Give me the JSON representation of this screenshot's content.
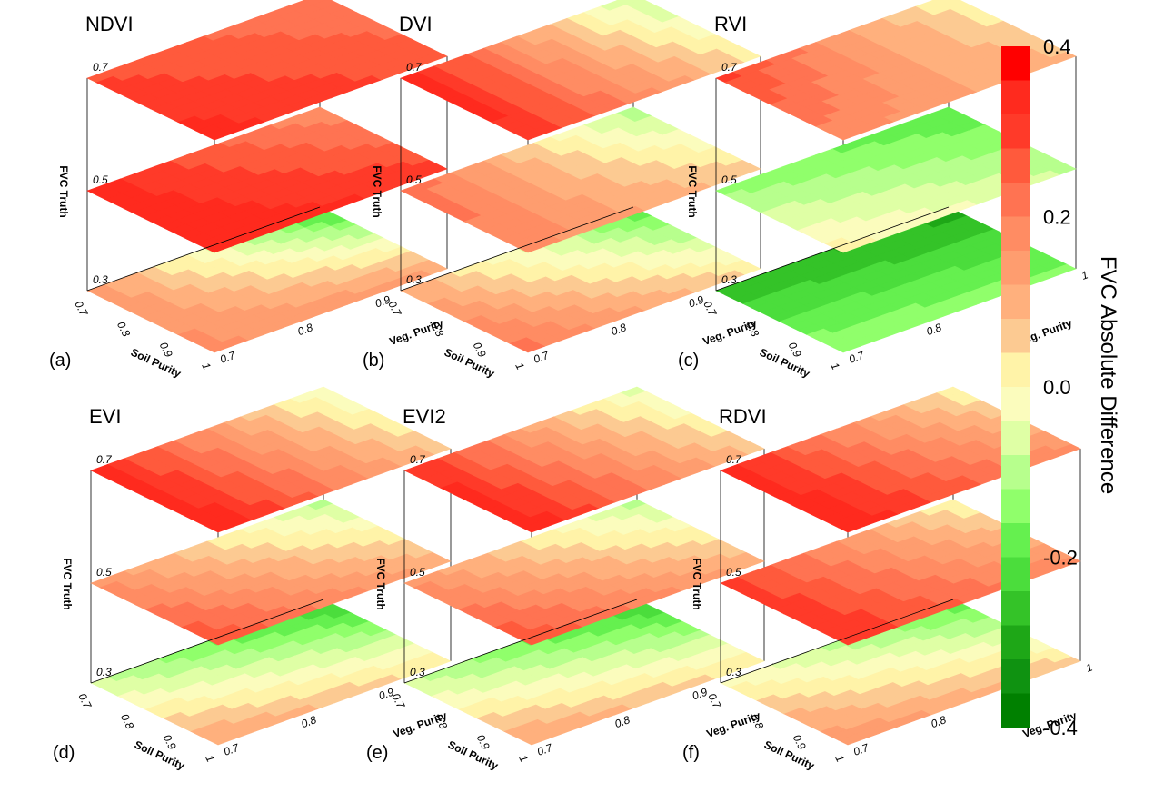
{
  "colorbar": {
    "title": "FVC Absolute Difference",
    "ticks": [
      "0.4",
      "0.2",
      "0.0",
      "-0.2",
      "-0.4"
    ],
    "range": [
      -0.4,
      0.4
    ],
    "levels": [
      "#ff0000",
      "#ff2a1e",
      "#ff3a29",
      "#ff5a3c",
      "#ff7352",
      "#ff8c63",
      "#fe9d6f",
      "#ffb07d",
      "#fcca92",
      "#fff3a8",
      "#fbfcbd",
      "#dfffa5",
      "#b7ff8d",
      "#90ff6b",
      "#65f04f",
      "#4bdd3c",
      "#34c328",
      "#1ea717",
      "#0f9211",
      "#008000"
    ]
  },
  "chart_data": [
    {
      "panel": "(a)",
      "title": "NDVI",
      "type": "heatmap",
      "xlabel": "Soil Purity",
      "ylabel": "Veg. Purity",
      "zlabel": "FVC Truth",
      "soil_ticks": [
        "0.7",
        "0.8",
        "0.9",
        "1"
      ],
      "veg_ticks": [
        "0.7",
        "0.8",
        "0.9",
        "1"
      ],
      "level_labels": [
        "0.7",
        "0.5",
        "0.3"
      ],
      "soil_purity": [
        0.7,
        1.0
      ],
      "veg_purity": [
        0.7,
        1.0
      ],
      "layers": [
        {
          "fvc_truth": 0.7,
          "corners": {
            "soil0.7_veg0.7": 0.28,
            "soil0.7_veg1": 0.2,
            "soil1_veg0.7": 0.34,
            "soil1_veg1": 0.26
          }
        },
        {
          "fvc_truth": 0.5,
          "corners": {
            "soil0.7_veg0.7": 0.34,
            "soil0.7_veg1": 0.16,
            "soil1_veg0.7": 0.36,
            "soil1_veg1": 0.3
          }
        },
        {
          "fvc_truth": 0.3,
          "corners": {
            "soil0.7_veg0.7": 0.15,
            "soil0.7_veg1": -0.24,
            "soil1_veg0.7": 0.17,
            "soil1_veg1": 0.13
          }
        }
      ]
    },
    {
      "panel": "(b)",
      "title": "DVI",
      "type": "heatmap",
      "xlabel": "Soil Purity",
      "ylabel": "Veg. Purity",
      "zlabel": "FVC Truth",
      "soil_ticks": [
        "0.7",
        "0.8",
        "0.9",
        "1"
      ],
      "veg_ticks": [
        "0.7",
        "0.8",
        "0.9",
        "1"
      ],
      "level_labels": [
        "0.7",
        "0.5",
        "0.3"
      ],
      "soil_purity": [
        0.7,
        1.0
      ],
      "veg_purity": [
        0.7,
        1.0
      ],
      "layers": [
        {
          "fvc_truth": 0.7,
          "corners": {
            "soil0.7_veg0.7": 0.36,
            "soil0.7_veg1": -0.1,
            "soil1_veg0.7": 0.32,
            "soil1_veg1": 0.03
          }
        },
        {
          "fvc_truth": 0.5,
          "corners": {
            "soil0.7_veg0.7": 0.24,
            "soil0.7_veg1": -0.12,
            "soil1_veg0.7": 0.18,
            "soil1_veg1": 0.06
          }
        },
        {
          "fvc_truth": 0.3,
          "corners": {
            "soil0.7_veg0.7": 0.11,
            "soil0.7_veg1": -0.2,
            "soil1_veg0.7": 0.22,
            "soil1_veg1": 0.03
          }
        }
      ]
    },
    {
      "panel": "(c)",
      "title": "RVI",
      "type": "heatmap",
      "xlabel": "Soil Purity",
      "ylabel": "Veg. Purity",
      "zlabel": "FVC Truth",
      "soil_ticks": [
        "0.7",
        "0.8",
        "0.9",
        "1"
      ],
      "veg_ticks": [
        "0.7",
        "0.8",
        "0.9",
        "1"
      ],
      "level_labels": [
        "0.7",
        "0.5",
        "0.3"
      ],
      "soil_purity": [
        0.7,
        1.0
      ],
      "veg_purity": [
        0.7,
        1.0
      ],
      "layers": [
        {
          "fvc_truth": 0.7,
          "corners": {
            "soil0.7_veg0.7": 0.3,
            "soil0.7_veg1": 0.0,
            "soil1_veg0.7": 0.18,
            "soil1_veg1": 0.08
          }
        },
        {
          "fvc_truth": 0.5,
          "corners": {
            "soil0.7_veg0.7": -0.13,
            "soil0.7_veg1": -0.2,
            "soil1_veg0.7": 0.02,
            "soil1_veg1": -0.08
          }
        },
        {
          "fvc_truth": 0.3,
          "corners": {
            "soil0.7_veg0.7": -0.27,
            "soil0.7_veg1": -0.3,
            "soil1_veg0.7": -0.12,
            "soil1_veg1": -0.15
          }
        }
      ]
    },
    {
      "panel": "(d)",
      "title": "EVI",
      "type": "heatmap",
      "xlabel": "Soil Purity",
      "ylabel": "Veg. Purity",
      "zlabel": "FVC Truth",
      "soil_ticks": [
        "0.7",
        "0.8",
        "0.9",
        "1"
      ],
      "veg_ticks": [
        "0.7",
        "0.8",
        "0.9",
        "1"
      ],
      "level_labels": [
        "0.7",
        "0.5",
        "0.3"
      ],
      "soil_purity": [
        0.7,
        1.0
      ],
      "veg_purity": [
        0.7,
        1.0
      ],
      "layers": [
        {
          "fvc_truth": 0.7,
          "corners": {
            "soil0.7_veg0.7": 0.34,
            "soil0.7_veg1": -0.05,
            "soil1_veg0.7": 0.36,
            "soil1_veg1": 0.06
          }
        },
        {
          "fvc_truth": 0.5,
          "corners": {
            "soil0.7_veg0.7": 0.16,
            "soil0.7_veg1": -0.1,
            "soil1_veg0.7": 0.28,
            "soil1_veg1": 0.1
          }
        },
        {
          "fvc_truth": 0.3,
          "corners": {
            "soil0.7_veg0.7": -0.08,
            "soil0.7_veg1": -0.26,
            "soil1_veg0.7": 0.13,
            "soil1_veg1": 0.03
          }
        }
      ]
    },
    {
      "panel": "(e)",
      "title": "EVI2",
      "type": "heatmap",
      "xlabel": "Soil Purity",
      "ylabel": "Veg. Purity",
      "zlabel": "FVC Truth",
      "soil_ticks": [
        "0.7",
        "0.8",
        "0.9",
        "1"
      ],
      "veg_ticks": [
        "0.7",
        "0.8",
        "0.9",
        "1"
      ],
      "level_labels": [
        "0.7",
        "0.5",
        "0.3"
      ],
      "soil_purity": [
        0.7,
        1.0
      ],
      "veg_purity": [
        0.7,
        1.0
      ],
      "layers": [
        {
          "fvc_truth": 0.7,
          "corners": {
            "soil0.7_veg0.7": 0.32,
            "soil0.7_veg1": -0.06,
            "soil1_veg0.7": 0.36,
            "soil1_veg1": 0.06
          }
        },
        {
          "fvc_truth": 0.5,
          "corners": {
            "soil0.7_veg0.7": 0.16,
            "soil0.7_veg1": -0.1,
            "soil1_veg0.7": 0.28,
            "soil1_veg1": 0.1
          }
        },
        {
          "fvc_truth": 0.3,
          "corners": {
            "soil0.7_veg0.7": -0.08,
            "soil0.7_veg1": -0.26,
            "soil1_veg0.7": 0.13,
            "soil1_veg1": 0.03
          }
        }
      ]
    },
    {
      "panel": "(f)",
      "title": "RDVI",
      "type": "heatmap",
      "xlabel": "Soil Purity",
      "ylabel": "Veg. Purity",
      "zlabel": "FVC Truth",
      "soil_ticks": [
        "0.7",
        "0.8",
        "0.9",
        "1"
      ],
      "veg_ticks": [
        "0.7",
        "0.8",
        "0.9",
        "1"
      ],
      "level_labels": [
        "0.7",
        "0.5",
        "0.3"
      ],
      "soil_purity": [
        0.7,
        1.0
      ],
      "veg_purity": [
        0.7,
        1.0
      ],
      "layers": [
        {
          "fvc_truth": 0.7,
          "corners": {
            "soil0.7_veg0.7": 0.34,
            "soil0.7_veg1": 0.0,
            "soil1_veg0.7": 0.36,
            "soil1_veg1": 0.16
          }
        },
        {
          "fvc_truth": 0.5,
          "corners": {
            "soil0.7_veg0.7": 0.3,
            "soil0.7_veg1": 0.0,
            "soil1_veg0.7": 0.32,
            "soil1_veg1": 0.16
          }
        },
        {
          "fvc_truth": 0.3,
          "corners": {
            "soil0.7_veg0.7": 0.0,
            "soil0.7_veg1": -0.2,
            "soil1_veg0.7": 0.16,
            "soil1_veg1": 0.06
          }
        }
      ]
    }
  ]
}
